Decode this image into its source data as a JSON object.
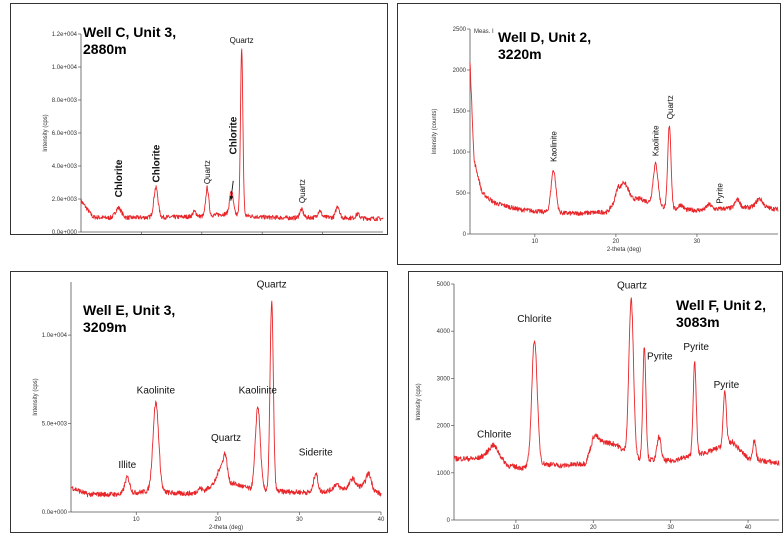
{
  "colors": {
    "trace": "#e8262a",
    "axis": "#555555",
    "text": "#111111"
  },
  "chart_data": [
    {
      "type": "line",
      "title": "Well C, Unit 3,\n2880m",
      "xlabel": "2-theta (deg)",
      "ylabel": "Intensity (cps)",
      "xlim": [
        0,
        50
      ],
      "ylim": [
        0,
        12000
      ],
      "xticks": [
        10,
        20,
        30,
        40
      ],
      "yticks": [
        0,
        2000,
        4000,
        6000,
        8000,
        10000,
        12000
      ],
      "ytick_labels": [
        "0.0e+000",
        "2.0e+003",
        "4.0e+003",
        "6.0e+003",
        "8.0e+003",
        "1.0e+004",
        "1.2e+004"
      ],
      "baseline": [
        [
          0,
          1900
        ],
        [
          2,
          900
        ],
        [
          5,
          850
        ],
        [
          10,
          880
        ],
        [
          15,
          900
        ],
        [
          20,
          950
        ],
        [
          24,
          1100
        ],
        [
          27,
          1000
        ],
        [
          30,
          900
        ],
        [
          35,
          850
        ],
        [
          40,
          900
        ],
        [
          45,
          850
        ],
        [
          50,
          800
        ]
      ],
      "peaks": [
        [
          6.2,
          600,
          0.5
        ],
        [
          12.4,
          1800,
          0.35
        ],
        [
          18.8,
          300,
          0.3
        ],
        [
          20.9,
          1700,
          0.25
        ],
        [
          24.9,
          1400,
          0.3
        ],
        [
          26.6,
          10000,
          0.2
        ],
        [
          36.5,
          500,
          0.3
        ],
        [
          39.5,
          400,
          0.3
        ],
        [
          42.5,
          700,
          0.3
        ],
        [
          45.8,
          250,
          0.3
        ]
      ],
      "annotations": [
        {
          "text": "Chlorite",
          "x": 6.2,
          "y": 2100,
          "angle": -90,
          "size": 10,
          "bold": true
        },
        {
          "text": "Chlorite",
          "x": 12.4,
          "y": 3000,
          "angle": -90,
          "size": 10,
          "bold": true
        },
        {
          "text": "Quartz",
          "x": 20.9,
          "y": 2900,
          "angle": -90,
          "size": 8,
          "bold": false
        },
        {
          "text": "Chlorite",
          "x": 25.2,
          "y": 4700,
          "angle": -90,
          "size": 10,
          "bold": true
        },
        {
          "text": "Quartz",
          "x": 26.6,
          "y": 11450,
          "angle": 0,
          "size": 8,
          "bold": false
        },
        {
          "text": "Quartz",
          "x": 36.6,
          "y": 1750,
          "angle": -90,
          "size": 8,
          "bold": false
        }
      ],
      "arrow": {
        "from": [
          25.2,
          3100
        ],
        "to": [
          24.8,
          1900
        ]
      },
      "plot": {
        "x0": 70,
        "x1": 372,
        "y0": 30,
        "y1": 228
      }
    },
    {
      "type": "line",
      "title": "Well D, Unit 2,\n3220m",
      "xlabel": "2-theta (deg)",
      "ylabel": "Intensity (counts)",
      "xlim": [
        2,
        40
      ],
      "ylim": [
        0,
        2500
      ],
      "xticks": [
        10,
        20,
        30
      ],
      "yticks": [
        0,
        500,
        1000,
        1500,
        2000,
        2500
      ],
      "ytick_labels": [
        "0",
        "500",
        "1000",
        "1500",
        "2000",
        "2500"
      ],
      "header_text": "Meas. I",
      "baseline": [
        [
          2,
          2100
        ],
        [
          2.5,
          900
        ],
        [
          3.5,
          500
        ],
        [
          5,
          380
        ],
        [
          8,
          300
        ],
        [
          12,
          260
        ],
        [
          15,
          250
        ],
        [
          19,
          270
        ],
        [
          20,
          420
        ],
        [
          23,
          430
        ],
        [
          25,
          350
        ],
        [
          27,
          300
        ],
        [
          30,
          290
        ],
        [
          35,
          320
        ],
        [
          38,
          330
        ],
        [
          40,
          300
        ]
      ],
      "peaks": [
        [
          12.3,
          520,
          0.3
        ],
        [
          20.3,
          150,
          0.25
        ],
        [
          20.9,
          170,
          0.25
        ],
        [
          21.4,
          120,
          0.3
        ],
        [
          24.9,
          500,
          0.3
        ],
        [
          26.6,
          1020,
          0.2
        ],
        [
          28.0,
          60,
          0.3
        ],
        [
          31.5,
          60,
          0.3
        ],
        [
          35.0,
          100,
          0.3
        ],
        [
          37.7,
          100,
          0.4
        ]
      ],
      "annotations": [
        {
          "text": "Kaolinite",
          "x": 12.3,
          "y": 880,
          "angle": -90,
          "size": 8,
          "bold": false
        },
        {
          "text": "Kaolinite",
          "x": 24.9,
          "y": 950,
          "angle": -90,
          "size": 8,
          "bold": false
        },
        {
          "text": "Quartz",
          "x": 26.7,
          "y": 1400,
          "angle": -90,
          "size": 8,
          "bold": false
        },
        {
          "text": "Pyrite",
          "x": 32.8,
          "y": 370,
          "angle": -90,
          "size": 8,
          "bold": false
        }
      ],
      "plot": {
        "x0": 72,
        "x1": 380,
        "y0": 25,
        "y1": 230
      }
    },
    {
      "type": "line",
      "title": "Well E, Unit 3,\n3209m",
      "xlabel": "2-theta (deg)",
      "ylabel": "Intensity (cps)",
      "xlim": [
        2,
        40
      ],
      "ylim": [
        0,
        13000
      ],
      "xticks": [
        10,
        20,
        30,
        40
      ],
      "yticks": [
        0,
        5000,
        10000
      ],
      "ytick_labels": [
        "0.0e+000",
        "5.0e+003",
        "1.0e+004"
      ],
      "baseline": [
        [
          2,
          1400
        ],
        [
          4,
          1000
        ],
        [
          8,
          1000
        ],
        [
          12,
          1200
        ],
        [
          15,
          1050
        ],
        [
          18,
          1050
        ],
        [
          20,
          1800
        ],
        [
          22,
          1600
        ],
        [
          24,
          1300
        ],
        [
          28,
          1150
        ],
        [
          32,
          1100
        ],
        [
          35,
          1300
        ],
        [
          38,
          1500
        ],
        [
          40,
          1000
        ]
      ],
      "peaks": [
        [
          8.9,
          900,
          0.3
        ],
        [
          12.4,
          5000,
          0.35
        ],
        [
          17.8,
          300,
          0.3
        ],
        [
          20.3,
          700,
          0.3
        ],
        [
          20.9,
          1500,
          0.25
        ],
        [
          24.9,
          4700,
          0.3
        ],
        [
          26.6,
          10700,
          0.2
        ],
        [
          32.0,
          1100,
          0.25
        ],
        [
          34.5,
          300,
          0.3
        ],
        [
          36.5,
          500,
          0.3
        ],
        [
          38.5,
          800,
          0.3
        ]
      ],
      "annotations": [
        {
          "text": "Illite",
          "x": 8.9,
          "y": 2500,
          "angle": 0,
          "size": 10,
          "bold": false
        },
        {
          "text": "Kaolinite",
          "x": 12.4,
          "y": 6700,
          "angle": 0,
          "size": 10,
          "bold": false
        },
        {
          "text": "Quartz",
          "x": 21.0,
          "y": 4000,
          "angle": 0,
          "size": 10,
          "bold": false
        },
        {
          "text": "Kaolinite",
          "x": 24.9,
          "y": 6700,
          "angle": 0,
          "size": 10,
          "bold": false
        },
        {
          "text": "Quartz",
          "x": 26.6,
          "y": 12700,
          "angle": 0,
          "size": 10,
          "bold": false
        },
        {
          "text": "Siderite",
          "x": 32.0,
          "y": 3200,
          "angle": 0,
          "size": 10,
          "bold": false
        }
      ],
      "plot": {
        "x0": 60,
        "x1": 370,
        "y0": 10,
        "y1": 240
      }
    },
    {
      "type": "line",
      "title": "Well F, Unit 2,\n3083m",
      "xlabel": "2-theta (deg)",
      "ylabel": "Intensity (cps)",
      "xlim": [
        2,
        44
      ],
      "ylim": [
        0,
        5000
      ],
      "xticks": [
        10,
        20,
        30,
        40
      ],
      "yticks": [
        0,
        1000,
        2000,
        3000,
        4000,
        5000
      ],
      "ytick_labels": [
        "0",
        "1000",
        "2000",
        "3000",
        "4000",
        "5000"
      ],
      "baseline": [
        [
          2,
          1300
        ],
        [
          5,
          1300
        ],
        [
          7,
          1450
        ],
        [
          9,
          1150
        ],
        [
          11,
          1100
        ],
        [
          13,
          1200
        ],
        [
          16,
          1150
        ],
        [
          19,
          1200
        ],
        [
          20,
          1700
        ],
        [
          23,
          1600
        ],
        [
          25,
          1300
        ],
        [
          30,
          1250
        ],
        [
          35,
          1450
        ],
        [
          38,
          1650
        ],
        [
          40,
          1300
        ],
        [
          44,
          1200
        ]
      ],
      "peaks": [
        [
          7.2,
          150,
          0.6
        ],
        [
          12.4,
          2650,
          0.35
        ],
        [
          20.3,
          100,
          0.3
        ],
        [
          24.9,
          3350,
          0.3
        ],
        [
          26.6,
          2400,
          0.2
        ],
        [
          28.5,
          500,
          0.25
        ],
        [
          33.1,
          1950,
          0.2
        ],
        [
          37.0,
          1150,
          0.2
        ],
        [
          40.8,
          400,
          0.2
        ]
      ],
      "annotations": [
        {
          "text": "Chlorite",
          "x": 7.2,
          "y": 1750,
          "angle": 0,
          "size": 10,
          "bold": false
        },
        {
          "text": "Chlorite",
          "x": 12.4,
          "y": 4200,
          "angle": 0,
          "size": 10,
          "bold": false
        },
        {
          "text": "Quartz",
          "x": 25.0,
          "y": 4900,
          "angle": 0,
          "size": 10,
          "bold": false
        },
        {
          "text": "Pyrite",
          "x": 28.6,
          "y": 3400,
          "angle": 0,
          "size": 10,
          "bold": false
        },
        {
          "text": "Pyrite",
          "x": 33.3,
          "y": 3600,
          "angle": 0,
          "size": 10,
          "bold": false
        },
        {
          "text": "Pyrite",
          "x": 37.2,
          "y": 2800,
          "angle": 0,
          "size": 10,
          "bold": false
        }
      ],
      "plot": {
        "x0": 45,
        "x1": 370,
        "y0": 12,
        "y1": 248
      }
    }
  ]
}
